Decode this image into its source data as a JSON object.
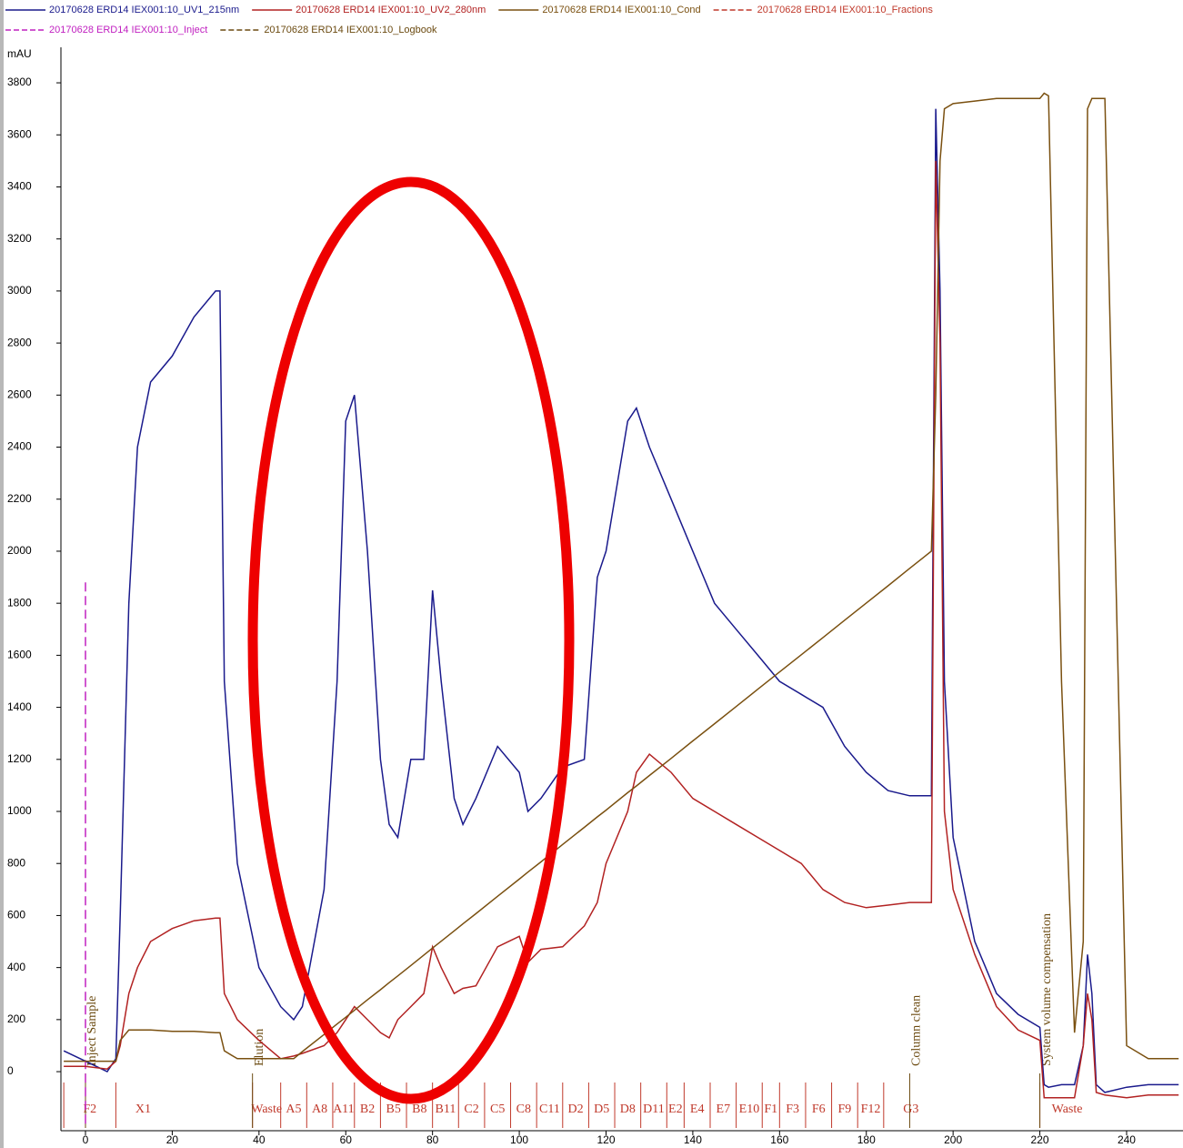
{
  "chart_data": {
    "type": "line",
    "y_label": "mAU",
    "xlim": [
      -5.45,
      253
    ],
    "ylim": [
      -227,
      3926
    ],
    "xticks": [
      0,
      20,
      40,
      60,
      80,
      100,
      120,
      140,
      160,
      180,
      200,
      220,
      240
    ],
    "yticks": [
      0,
      200,
      400,
      600,
      800,
      1000,
      1200,
      1400,
      1600,
      1800,
      2000,
      2200,
      2400,
      2600,
      2800,
      3000,
      3200,
      3400,
      3600,
      3800
    ],
    "x": [
      -5,
      0,
      5,
      7,
      8,
      10,
      12,
      15,
      20,
      25,
      30,
      31,
      32,
      35,
      40,
      45,
      48,
      50,
      55,
      58,
      60,
      62,
      65,
      68,
      70,
      72,
      75,
      78,
      80,
      82,
      85,
      87,
      90,
      95,
      100,
      102,
      105,
      110,
      115,
      118,
      120,
      125,
      127,
      130,
      135,
      140,
      145,
      150,
      155,
      160,
      165,
      170,
      175,
      180,
      185,
      190,
      195,
      196,
      197,
      198,
      200,
      205,
      210,
      215,
      220,
      221,
      222,
      225,
      228,
      230,
      231,
      232,
      233,
      235,
      240,
      245,
      252
    ],
    "series": [
      {
        "name": "20170628 ERD14 IEX001:10_UV1_215nm",
        "color": "#1a1a8c",
        "values": [
          80,
          40,
          0,
          50,
          600,
          1800,
          2400,
          2650,
          2750,
          2900,
          3000,
          3000,
          1500,
          800,
          400,
          250,
          200,
          250,
          700,
          1500,
          2500,
          2600,
          2000,
          1200,
          950,
          900,
          1200,
          1200,
          1850,
          1500,
          1050,
          950,
          1050,
          1250,
          1150,
          1000,
          1050,
          1170,
          1200,
          1900,
          2000,
          2500,
          2550,
          2400,
          2200,
          2000,
          1800,
          1700,
          1600,
          1500,
          1450,
          1400,
          1250,
          1150,
          1080,
          1060,
          1060,
          3700,
          3000,
          1500,
          900,
          500,
          300,
          220,
          170,
          -50,
          -60,
          -50,
          -50,
          100,
          450,
          300,
          -50,
          -80,
          -60,
          -50,
          -50
        ]
      },
      {
        "name": "20170628 ERD14 IEX001:10_UV2_280nm",
        "color": "#b22222",
        "values": [
          20,
          20,
          10,
          40,
          100,
          300,
          400,
          500,
          550,
          580,
          590,
          590,
          300,
          200,
          120,
          50,
          60,
          70,
          100,
          150,
          200,
          250,
          200,
          150,
          130,
          200,
          250,
          300,
          480,
          400,
          300,
          320,
          330,
          480,
          520,
          420,
          470,
          480,
          560,
          650,
          800,
          1000,
          1150,
          1220,
          1150,
          1050,
          1000,
          950,
          900,
          850,
          800,
          700,
          650,
          630,
          640,
          650,
          650,
          3500,
          2800,
          1000,
          700,
          450,
          250,
          160,
          120,
          -100,
          -100,
          -100,
          -100,
          100,
          300,
          200,
          -80,
          -90,
          -100,
          -90,
          -90
        ]
      },
      {
        "name": "20170628 ERD14 IEX001:10_Cond",
        "color": "#7a5010",
        "values": [
          40,
          40,
          40,
          40,
          120,
          160,
          160,
          160,
          155,
          155,
          150,
          150,
          80,
          50,
          50,
          50,
          50,
          77,
          143,
          183,
          209,
          236,
          276,
          315,
          342,
          368,
          408,
          448,
          475,
          501,
          541,
          568,
          607,
          674,
          740,
          767,
          806,
          873,
          939,
          979,
          1005,
          1072,
          1098,
          1138,
          1204,
          1271,
          1337,
          1403,
          1470,
          1536,
          1602,
          1668,
          1735,
          1801,
          1867,
          1934,
          2000,
          2600,
          3500,
          3700,
          3720,
          3730,
          3740,
          3740,
          3740,
          3760,
          3750,
          1500,
          150,
          500,
          3700,
          3740,
          3740,
          3740,
          100,
          50,
          50
        ]
      }
    ],
    "fractions": {
      "name": "20170628 ERD14 IEX001:10_Fractions",
      "color": "#c0392b",
      "labels": [
        "F2",
        "X1",
        "Waste",
        "A5",
        "A8",
        "A11",
        "B2",
        "B5",
        "B8",
        "B11",
        "C2",
        "C5",
        "C8",
        "C11",
        "D2",
        "D5",
        "D8",
        "D11",
        "E2",
        "E4",
        "E7",
        "E10",
        "F1",
        "F3",
        "F6",
        "F9",
        "F12",
        "G3",
        "Waste"
      ],
      "x": [
        -5,
        7,
        38.5,
        45,
        51,
        57,
        62,
        68,
        74,
        80,
        86,
        92,
        98,
        104,
        110,
        116,
        122,
        128,
        134,
        138,
        144,
        150,
        156,
        160,
        166,
        172,
        178,
        184,
        220
      ]
    },
    "inject": {
      "name": "20170628 ERD14 IEX001:10_Inject",
      "color": "#c020c0",
      "x": 0,
      "value": 1880
    },
    "logbook": {
      "name": "20170628 ERD14 IEX001:10_Logbook",
      "color": "#6b4a10",
      "labels": [
        "Inject Sample",
        "Elution",
        "Column clean",
        "System volume compensation"
      ],
      "x": [
        0,
        38.5,
        190,
        220
      ]
    }
  }
}
